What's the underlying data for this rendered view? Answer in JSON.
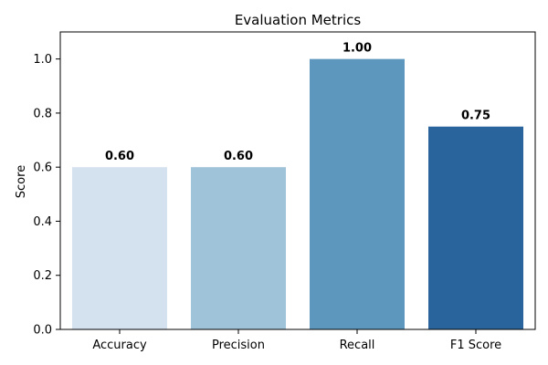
{
  "chart_data": {
    "type": "bar",
    "title": "Evaluation Metrics",
    "xlabel": "",
    "ylabel": "Score",
    "categories": [
      "Accuracy",
      "Precision",
      "Recall",
      "F1 Score"
    ],
    "values": [
      0.6,
      0.6,
      1.0,
      0.75
    ],
    "value_labels": [
      "0.60",
      "0.60",
      "1.00",
      "0.75"
    ],
    "colors": [
      "#d4e2f0",
      "#9fc3d8",
      "#5d97be",
      "#2a649c"
    ],
    "ylim": [
      0,
      1.1
    ],
    "yticks": [
      0.0,
      0.2,
      0.4,
      0.6,
      0.8,
      1.0
    ],
    "ytick_labels": [
      "0.0",
      "0.2",
      "0.4",
      "0.6",
      "0.8",
      "1.0"
    ],
    "grid": false,
    "legend": "none"
  }
}
